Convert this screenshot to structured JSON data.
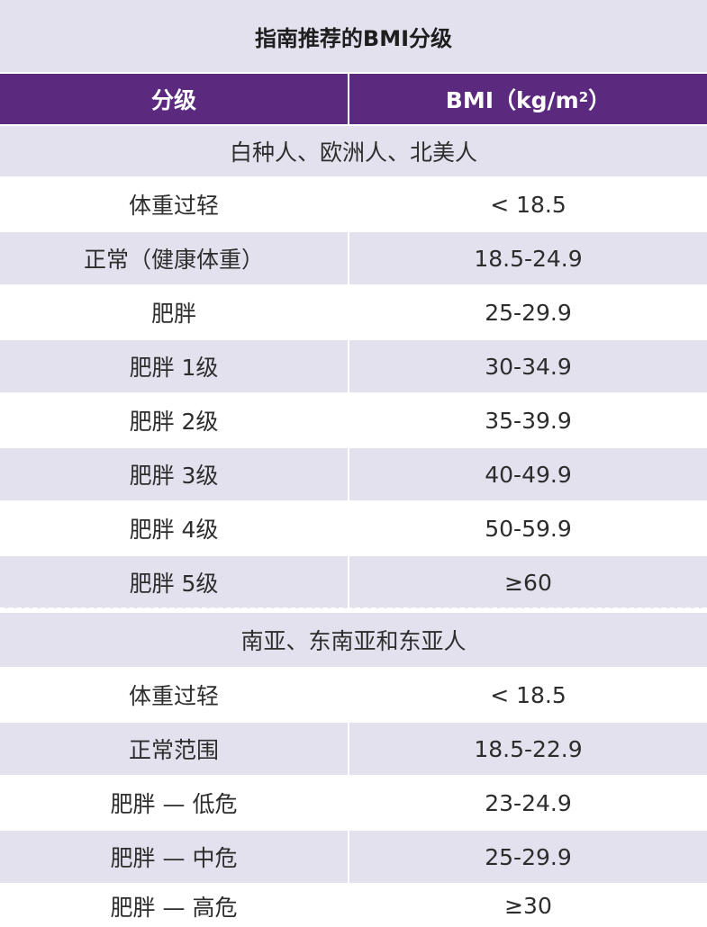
{
  "title": "指南推荐的BMI分级",
  "header": {
    "col1": "分级",
    "col2_main": "BMI（kg/m",
    "col2_sup": "2",
    "col2_end": "）"
  },
  "group1": {
    "label": "白种人、欧洲人、北美人",
    "rows": [
      {
        "grade": "体重过轻",
        "bmi": "< 18.5"
      },
      {
        "grade": "正常（健康体重）",
        "bmi": "18.5-24.9"
      },
      {
        "grade": "肥胖",
        "bmi": "25-29.9"
      },
      {
        "grade": "肥胖 1级",
        "bmi": "30-34.9"
      },
      {
        "grade": "肥胖 2级",
        "bmi": "35-39.9"
      },
      {
        "grade": "肥胖 3级",
        "bmi": "40-49.9"
      },
      {
        "grade": "肥胖 4级",
        "bmi": "50-59.9"
      },
      {
        "grade": "肥胖 5级",
        "bmi": "≥60"
      }
    ]
  },
  "group2": {
    "label": "南亚、东南亚和东亚人",
    "rows": [
      {
        "grade": "体重过轻",
        "bmi": "< 18.5"
      },
      {
        "grade": "正常范围",
        "bmi": "18.5-22.9"
      },
      {
        "grade": "肥胖 — 低危",
        "bmi": "23-24.9"
      },
      {
        "grade": "肥胖 — 中危",
        "bmi": "25-29.9"
      },
      {
        "grade": "肥胖 — 高危",
        "bmi": "≥30"
      }
    ]
  },
  "colors": {
    "header_bg": "#5b2a7e",
    "shade_bg": "#e4e1ee"
  }
}
